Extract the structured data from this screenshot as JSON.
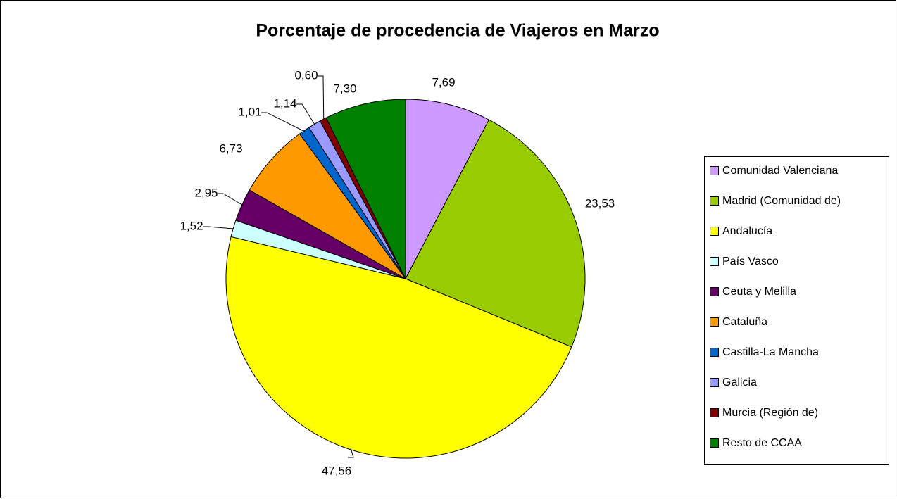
{
  "chart_data": {
    "type": "pie",
    "title": "Porcentaje de procedencia de Viajeros en Marzo",
    "categories": [
      "Comunidad Valenciana",
      "Madrid (Comunidad de)",
      "Andalucía",
      "País Vasco",
      "Ceuta y Melilla",
      "Cataluña",
      "Castilla-La Mancha",
      "Galicia",
      "Murcia (Región de)",
      "Resto de  CCAA"
    ],
    "values": [
      7.69,
      23.53,
      47.56,
      1.52,
      2.95,
      6.73,
      1.01,
      1.14,
      0.6,
      7.3
    ],
    "value_labels": [
      "7,69",
      "23,53",
      "47,56",
      "1,52",
      "2,95",
      "6,73",
      "1,01",
      "1,14",
      "0,60",
      "7,30"
    ],
    "colors": [
      "#cc99ff",
      "#99cc00",
      "#ffff00",
      "#ccffff",
      "#660066",
      "#ff9900",
      "#0066cc",
      "#9999ff",
      "#800000",
      "#008000"
    ],
    "legend": "right"
  }
}
